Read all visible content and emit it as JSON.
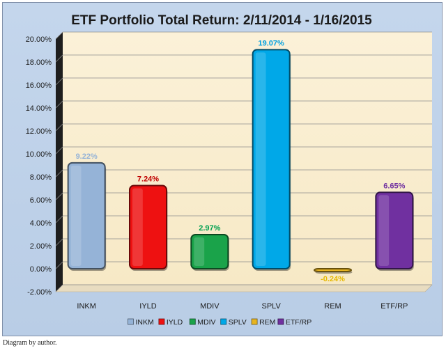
{
  "chart_data": {
    "type": "bar",
    "title": "ETF Portfolio Total Return: 2/11/2014 - 1/16/2015",
    "categories": [
      "INKM",
      "IYLD",
      "MDIV",
      "SPLV",
      "REM",
      "ETF/RP"
    ],
    "values": [
      9.22,
      7.24,
      2.97,
      19.07,
      -0.24,
      6.65
    ],
    "data_labels": [
      "9.22%",
      "7.24%",
      "2.97%",
      "19.07%",
      "-0.24%",
      "6.65%"
    ],
    "colors": [
      "#95b3d7",
      "#ee1111",
      "#1aa34a",
      "#00a8e8",
      "#e7b420",
      "#7030a0"
    ],
    "label_colors": [
      "#95b3d7",
      "#c00000",
      "#00a050",
      "#00a0e0",
      "#e6b800",
      "#7030a0"
    ],
    "ylim": [
      -2,
      20
    ],
    "yticks": [
      "-2.00%",
      "0.00%",
      "2.00%",
      "4.00%",
      "6.00%",
      "8.00%",
      "10.00%",
      "12.00%",
      "14.00%",
      "16.00%",
      "18.00%",
      "20.00%"
    ],
    "grid": true,
    "legend_position": "bottom",
    "xlabel": "",
    "ylabel": ""
  },
  "caption": "Diagram by author."
}
